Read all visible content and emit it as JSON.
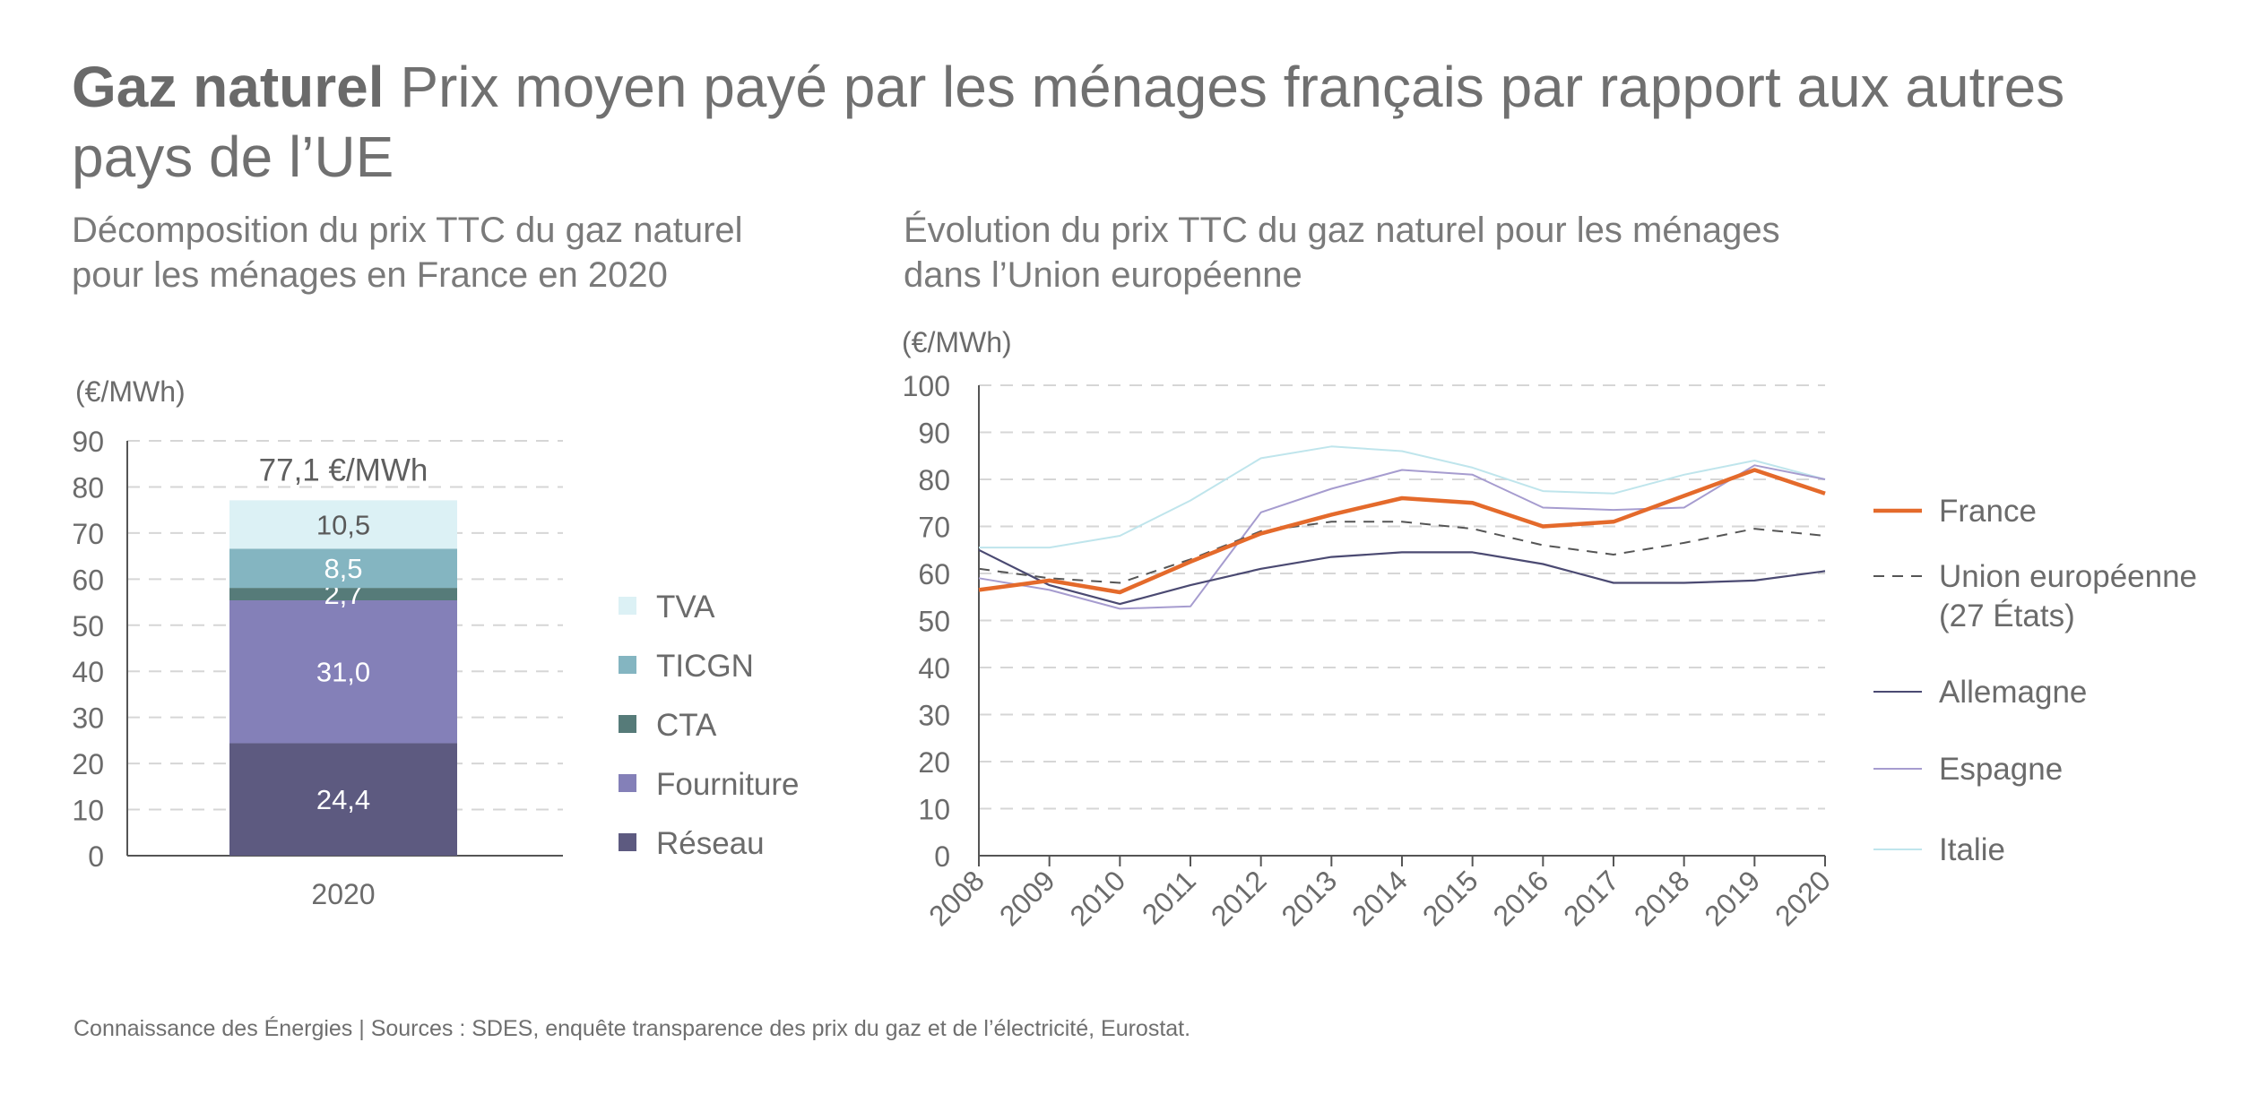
{
  "header": {
    "title_bold": "Gaz naturel",
    "title_rest": " Prix moyen payé par les ménages français par rapport aux autres pays de l’UE"
  },
  "left_subtitle": "Décomposition du prix TTC du gaz naturel pour les ménages en France en 2020",
  "right_subtitle": "Évolution du prix TTC du gaz naturel pour les ménages dans l’Union européenne",
  "footer": "Connaissance des Énergies | Sources : SDES, enquête transparence des prix du gaz et de l’électricité, Eurostat.",
  "colors": {
    "TVA": "#dcf1f5",
    "TICGN": "#84b5c1",
    "CTA": "#567b79",
    "Fourniture": "#8480b8",
    "Réseau": "#5d5a80",
    "France": "#e46a2b",
    "UE": "#555555",
    "Allemagne": "#4b4a72",
    "Espagne": "#a69ccf",
    "Italie": "#bfe5ec",
    "axis": "#555555",
    "grid": "#d6d6d6",
    "text": "#6b6b6b"
  },
  "chart_data": [
    {
      "type": "bar",
      "stacked": true,
      "categories": [
        "2020"
      ],
      "ylabel": "(€/MWh)",
      "ylim": [
        0,
        90
      ],
      "yticks": [
        0,
        10,
        20,
        30,
        40,
        50,
        60,
        70,
        80,
        90
      ],
      "total_label": "77,1 €/MWh",
      "series": [
        {
          "name": "Réseau",
          "values": [
            24.4
          ],
          "label": "24,4"
        },
        {
          "name": "Fourniture",
          "values": [
            31.0
          ],
          "label": "31,0"
        },
        {
          "name": "CTA",
          "values": [
            2.7
          ],
          "label": "2,7"
        },
        {
          "name": "TICGN",
          "values": [
            8.5
          ],
          "label": "8,5"
        },
        {
          "name": "TVA",
          "values": [
            10.5
          ],
          "label": "10,5"
        }
      ],
      "legend": [
        "TVA",
        "TICGN",
        "CTA",
        "Fourniture",
        "Réseau"
      ],
      "grid": true
    },
    {
      "type": "line",
      "x": [
        2008,
        2009,
        2010,
        2011,
        2012,
        2013,
        2014,
        2015,
        2016,
        2017,
        2018,
        2019,
        2020
      ],
      "ylabel": "(€/MWh)",
      "ylim": [
        0,
        100
      ],
      "yticks": [
        0,
        10,
        20,
        30,
        40,
        50,
        60,
        70,
        80,
        90,
        100
      ],
      "grid": true,
      "legend_position": "right",
      "series": [
        {
          "name": "France",
          "key": "France",
          "style": "solid-thick",
          "values": [
            56.5,
            58.5,
            56,
            62.5,
            68.5,
            72.5,
            76,
            75,
            70,
            71,
            76.5,
            82,
            77
          ]
        },
        {
          "name": "Union européenne",
          "name_line2": "(27 États)",
          "key": "UE",
          "style": "dashed",
          "values": [
            61,
            59,
            58,
            63,
            69,
            71,
            71,
            69.5,
            66,
            64,
            66.5,
            69.5,
            68
          ]
        },
        {
          "name": "Allemagne",
          "key": "Allemagne",
          "style": "solid",
          "values": [
            65,
            57.5,
            53.5,
            57.5,
            61,
            63.5,
            64.5,
            64.5,
            62,
            58,
            58,
            58.5,
            60.5
          ]
        },
        {
          "name": "Espagne",
          "key": "Espagne",
          "style": "solid",
          "values": [
            59,
            56.5,
            52.5,
            53,
            73,
            78,
            82,
            81,
            74,
            73.5,
            74,
            83,
            80
          ]
        },
        {
          "name": "Italie",
          "key": "Italie",
          "style": "solid",
          "values": [
            65.5,
            65.5,
            68,
            75.5,
            84.5,
            87,
            86,
            82.5,
            77.5,
            77,
            81,
            84,
            80
          ]
        }
      ]
    }
  ]
}
